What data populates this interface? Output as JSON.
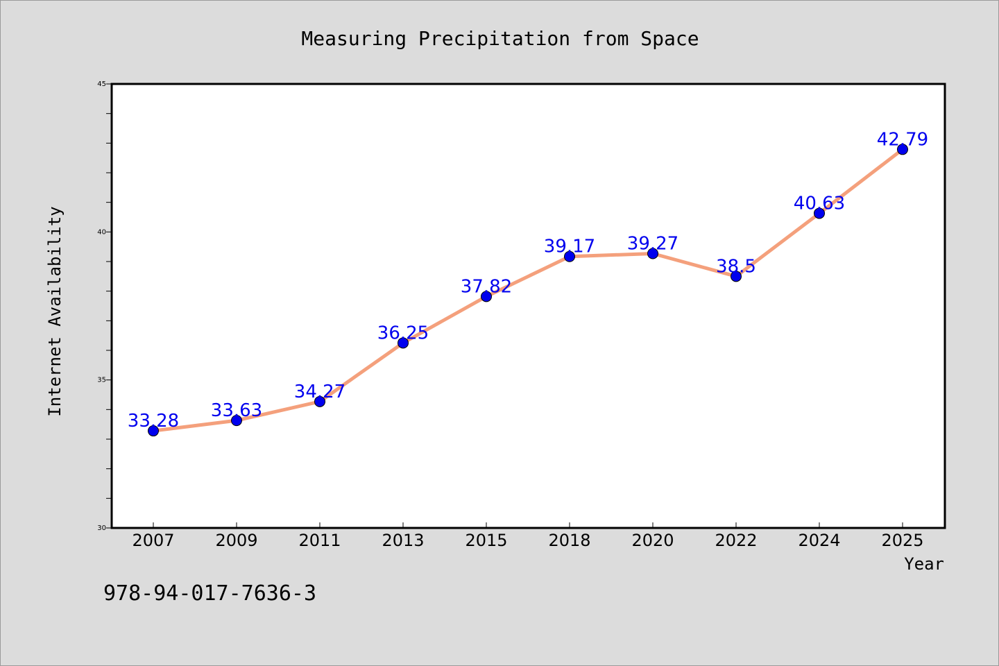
{
  "chart_data": {
    "type": "line",
    "title": "Measuring Precipitation from Space",
    "xlabel": "Year",
    "ylabel": "Internet Availability",
    "categories": [
      "2007",
      "2009",
      "2011",
      "2013",
      "2015",
      "2018",
      "2020",
      "2022",
      "2024",
      "2025"
    ],
    "series": [
      {
        "values": [
          33.28,
          33.63,
          34.27,
          36.25,
          37.82,
          39.17,
          39.27,
          38.5,
          40.63,
          42.79
        ],
        "labels": [
          "33.28",
          "33.63",
          "34.27",
          "36.25",
          "37.82",
          "39.17",
          "39.27",
          "38.5",
          "40.63",
          "42.79"
        ],
        "line_color": "#f4a07c",
        "marker_color": "#0000ee",
        "label_color": "#0000ee"
      }
    ],
    "ylim": [
      30,
      45
    ],
    "y_major_ticks": [
      "30",
      "35",
      "40",
      "45"
    ],
    "grid": false,
    "legend": "none"
  },
  "footer": {
    "isbn": "978-94-017-7636-3"
  },
  "colors": {
    "background": "#dcdcdc",
    "plot_background": "#ffffff",
    "axis": "#000000"
  }
}
